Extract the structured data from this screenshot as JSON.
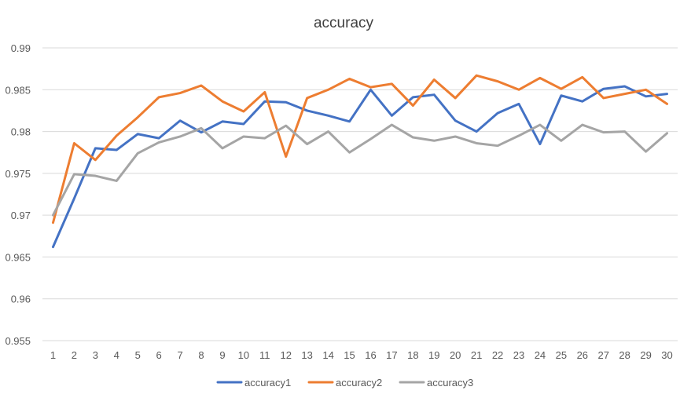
{
  "chart_data": {
    "type": "line",
    "title": "accuracy",
    "xlabel": "",
    "ylabel": "",
    "categories": [
      "1",
      "2",
      "3",
      "4",
      "5",
      "6",
      "7",
      "8",
      "9",
      "10",
      "11",
      "12",
      "13",
      "14",
      "15",
      "16",
      "17",
      "18",
      "19",
      "20",
      "21",
      "22",
      "23",
      "24",
      "25",
      "26",
      "27",
      "28",
      "29",
      "30"
    ],
    "ylim": [
      0.955,
      0.99
    ],
    "yticks": [
      0.955,
      0.96,
      0.965,
      0.97,
      0.975,
      0.98,
      0.985,
      0.99
    ],
    "ytick_labels": [
      "0.955",
      "0.96",
      "0.965",
      "0.97",
      "0.975",
      "0.98",
      "0.985",
      "0.99"
    ],
    "grid": true,
    "legend_position": "bottom",
    "series": [
      {
        "name": "accuracy1",
        "color": "#4472c4",
        "values": [
          0.9662,
          0.972,
          0.978,
          0.9778,
          0.9797,
          0.9792,
          0.9813,
          0.9799,
          0.9812,
          0.9809,
          0.9836,
          0.9835,
          0.9825,
          0.9819,
          0.9812,
          0.985,
          0.9819,
          0.9841,
          0.9844,
          0.9813,
          0.98,
          0.9822,
          0.9833,
          0.9785,
          0.9843,
          0.9836,
          0.9851,
          0.9854,
          0.9842,
          0.9845
        ]
      },
      {
        "name": "accuracy2",
        "color": "#ed7d31",
        "values": [
          0.9691,
          0.9786,
          0.9766,
          0.9795,
          0.9817,
          0.9841,
          0.9846,
          0.9855,
          0.9836,
          0.9824,
          0.9847,
          0.977,
          0.984,
          0.985,
          0.9863,
          0.9853,
          0.9857,
          0.9831,
          0.9862,
          0.984,
          0.9867,
          0.986,
          0.985,
          0.9864,
          0.9851,
          0.9865,
          0.984,
          0.9845,
          0.985,
          0.9833
        ]
      },
      {
        "name": "accuracy3",
        "color": "#a5a5a5",
        "values": [
          0.97,
          0.9749,
          0.9747,
          0.9741,
          0.9774,
          0.9787,
          0.9794,
          0.9804,
          0.978,
          0.9794,
          0.9792,
          0.9807,
          0.9785,
          0.98,
          0.9775,
          0.9791,
          0.9808,
          0.9793,
          0.9789,
          0.9794,
          0.9786,
          0.9783,
          0.9795,
          0.9808,
          0.9789,
          0.9808,
          0.9799,
          0.98,
          0.9776,
          0.9798
        ]
      }
    ]
  }
}
